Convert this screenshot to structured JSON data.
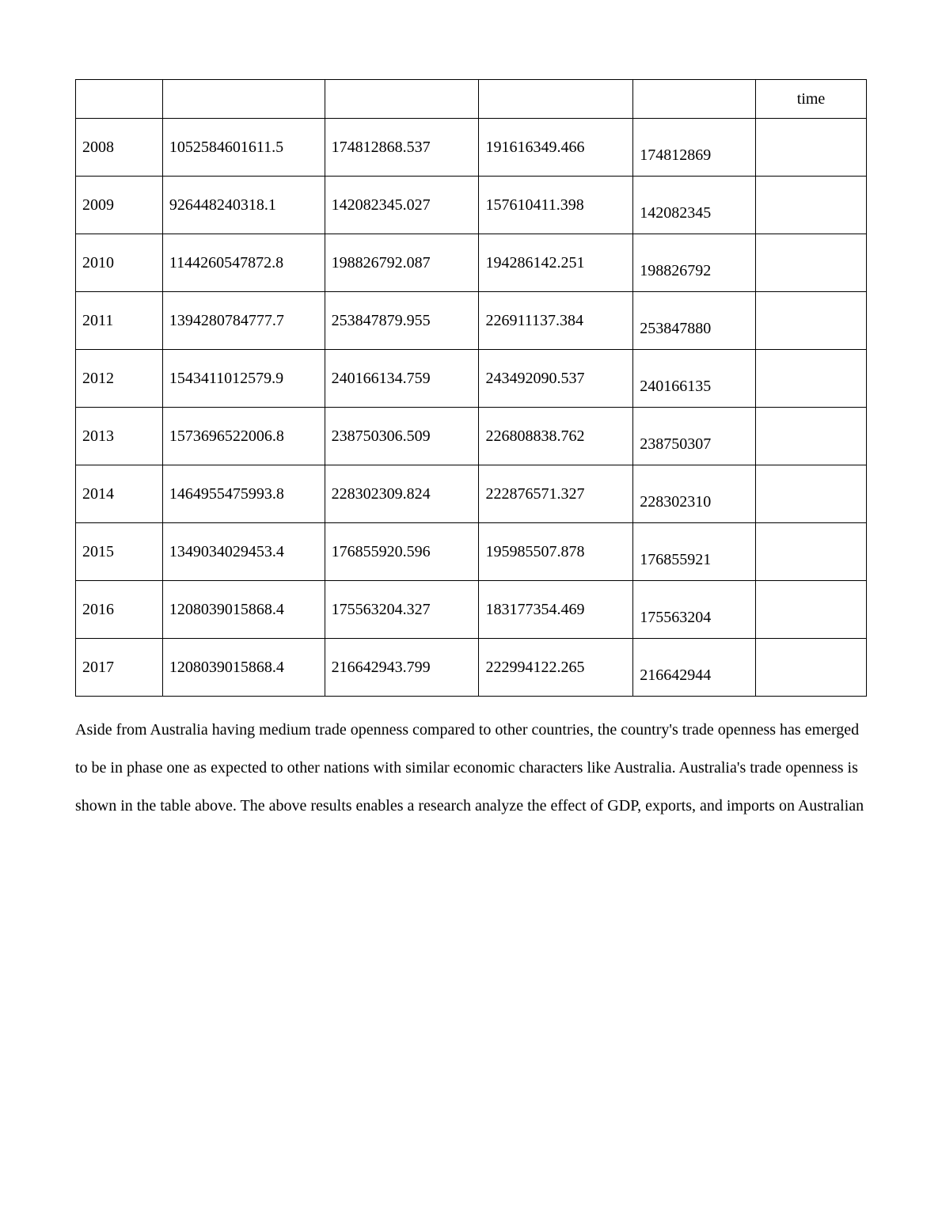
{
  "table": {
    "border_color": "#000000",
    "background_color": "#ffffff",
    "text_color": "#000000",
    "font_family": "Times New Roman",
    "font_size_pt": 12,
    "columns": [
      {
        "key": "year",
        "width_pct": 11,
        "header": ""
      },
      {
        "key": "gdp",
        "width_pct": 20.5,
        "header": ""
      },
      {
        "key": "exp",
        "width_pct": 19.5,
        "header": ""
      },
      {
        "key": "imp",
        "width_pct": 19.5,
        "header": ""
      },
      {
        "key": "open",
        "width_pct": 15.5,
        "header": ""
      },
      {
        "key": "time",
        "width_pct": 14,
        "header": "time",
        "align": "center"
      }
    ],
    "rows": [
      {
        "year": "2008",
        "gdp": "1052584601611.5",
        "exp": "174812868.537",
        "imp": "191616349.466",
        "open": "174812869",
        "time": ""
      },
      {
        "year": "2009",
        "gdp": "926448240318.1",
        "exp": "142082345.027",
        "imp": "157610411.398",
        "open": "142082345",
        "time": ""
      },
      {
        "year": "2010",
        "gdp": "1144260547872.8",
        "exp": "198826792.087",
        "imp": "194286142.251",
        "open": "198826792",
        "time": ""
      },
      {
        "year": "2011",
        "gdp": "1394280784777.7",
        "exp": "253847879.955",
        "imp": "226911137.384",
        "open": "253847880",
        "time": ""
      },
      {
        "year": "2012",
        "gdp": "1543411012579.9",
        "exp": "240166134.759",
        "imp": "243492090.537",
        "open": "240166135",
        "time": ""
      },
      {
        "year": "2013",
        "gdp": "1573696522006.8",
        "exp": "238750306.509",
        "imp": "226808838.762",
        "open": "238750307",
        "time": ""
      },
      {
        "year": "2014",
        "gdp": "1464955475993.8",
        "exp": "228302309.824",
        "imp": "222876571.327",
        "open": "228302310",
        "time": ""
      },
      {
        "year": "2015",
        "gdp": "1349034029453.4",
        "exp": "176855920.596",
        "imp": "195985507.878",
        "open": "176855921",
        "time": ""
      },
      {
        "year": "2016",
        "gdp": "1208039015868.4",
        "exp": "175563204.327",
        "imp": "183177354.469",
        "open": "175563204",
        "time": ""
      },
      {
        "year": "2017",
        "gdp": "1208039015868.4",
        "exp": "216642943.799",
        "imp": "222994122.265",
        "open": "216642944",
        "time": ""
      }
    ]
  },
  "paragraph": "Aside from Australia having medium trade openness compared to other countries, the country's trade openness has emerged to be in phase one as expected to other nations with similar economic characters like Australia. Australia's trade openness is shown in the table above. The above results enables a research analyze the effect of GDP, exports, and imports on Australian"
}
